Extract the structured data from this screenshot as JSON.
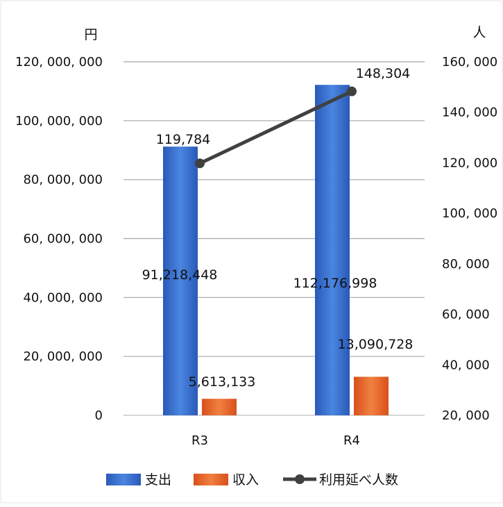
{
  "chart_data": {
    "type": "bar",
    "categories": [
      "R3",
      "R4"
    ],
    "series": [
      {
        "name": "支出",
        "axis": "left",
        "kind": "bar",
        "color": "#3a6fd0",
        "values": [
          91218448,
          112176998
        ],
        "labels": [
          "91,218,448",
          "112,176,998"
        ]
      },
      {
        "name": "収入",
        "axis": "left",
        "kind": "bar",
        "color": "#e8622a",
        "values": [
          5613133,
          13090728
        ],
        "labels": [
          "5,613,133",
          "13,090,728"
        ]
      },
      {
        "name": "利用延べ人数",
        "axis": "right",
        "kind": "line",
        "color": "#404040",
        "values": [
          119784,
          148304
        ],
        "labels": [
          "119,784",
          "148,304"
        ]
      }
    ],
    "y_left": {
      "unit": "円",
      "ylim": [
        0,
        120000000
      ],
      "ticks": [
        0,
        20000000,
        40000000,
        60000000,
        80000000,
        100000000,
        120000000
      ],
      "tick_labels": [
        "0",
        "20, 000, 000",
        "40, 000, 000",
        "60, 000, 000",
        "80, 000, 000",
        "100, 000, 000",
        "120, 000, 000"
      ]
    },
    "y_right": {
      "unit": "人",
      "ylim": [
        20000,
        160000
      ],
      "ticks": [
        20000,
        40000,
        60000,
        80000,
        100000,
        120000,
        140000,
        160000
      ],
      "tick_labels": [
        "20, 000",
        "40, 000",
        "60, 000",
        "80, 000",
        "100, 000",
        "120, 000",
        "140, 000",
        "160, 000"
      ]
    },
    "grid": true,
    "legend_position": "bottom",
    "title": "",
    "xlabel": ""
  }
}
